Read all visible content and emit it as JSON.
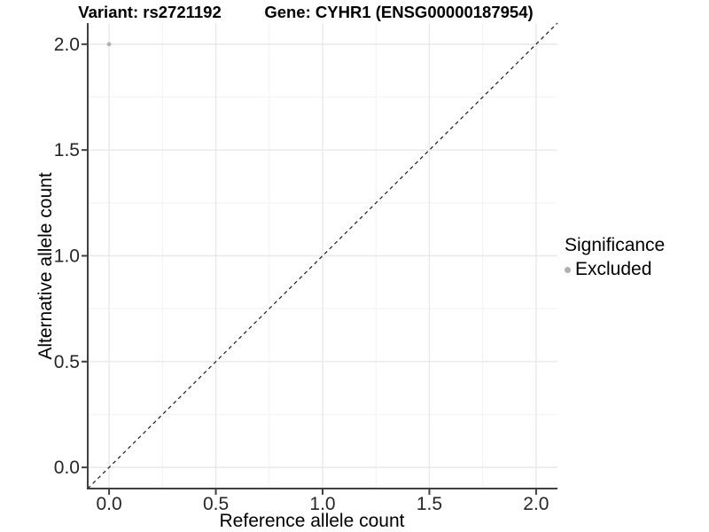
{
  "chart_data": {
    "type": "scatter",
    "title_left": "Variant: rs2721192",
    "title_right": "Gene: CYHR1 (ENSG00000187954)",
    "xlabel": "Reference allele count",
    "ylabel": "Alternative allele count",
    "xlim": [
      -0.1,
      2.1
    ],
    "ylim": [
      -0.1,
      2.1
    ],
    "x_ticks": [
      0.0,
      0.5,
      1.0,
      1.5,
      2.0
    ],
    "y_ticks": [
      0.0,
      0.5,
      1.0,
      1.5,
      2.0
    ],
    "x_minor_ticks": [
      0.25,
      0.75,
      1.25,
      1.75
    ],
    "y_minor_ticks": [
      0.25,
      0.75,
      1.25,
      1.75
    ],
    "grid": "major+minor",
    "points": [
      {
        "x": 0.0,
        "y": 2.0,
        "significance": "Excluded"
      }
    ],
    "identity_line": {
      "slope": 1,
      "intercept": 0,
      "style": "dashed"
    },
    "legend": {
      "title": "Significance",
      "position": "right",
      "entries": [
        {
          "label": "Excluded",
          "color": "#b0b0b0"
        }
      ]
    },
    "colors": {
      "excluded_point": "#b0b0b0",
      "dashed_line": "#1a1a1a",
      "axis_line": "#404040",
      "tick_label": "#262626",
      "grid_major": "#e8e8e8",
      "grid_minor": "#f4f4f4"
    }
  }
}
